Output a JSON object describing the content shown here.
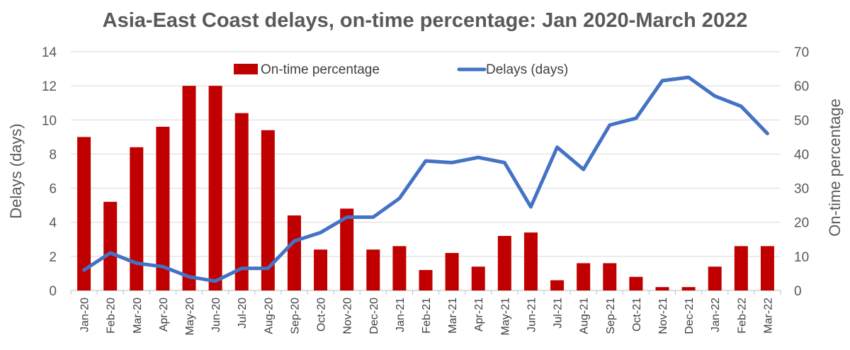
{
  "chart_data": {
    "type": "bar+line",
    "title": "Asia-East Coast delays, on-time percentage: Jan 2020-March 2022",
    "categories": [
      "Jan-20",
      "Feb-20",
      "Mar-20",
      "Apr-20",
      "May-20",
      "Jun-20",
      "Jul-20",
      "Aug-20",
      "Sep-20",
      "Oct-20",
      "Nov-20",
      "Dec-20",
      "Jan-21",
      "Feb-21",
      "Mar-21",
      "Apr-21",
      "May-21",
      "Jun-21",
      "Jul-21",
      "Aug-21",
      "Sep-21",
      "Oct-21",
      "Nov-21",
      "Dec-21",
      "Jan-22",
      "Feb-22",
      "Mar-22"
    ],
    "series": [
      {
        "name": "On-time percentage",
        "type": "bar",
        "axis": "right",
        "color": "#c00000",
        "values": [
          45,
          26,
          42,
          48,
          60,
          60,
          52,
          47,
          22,
          12,
          24,
          12,
          13,
          6,
          11,
          7,
          16,
          17,
          3,
          8,
          8,
          4,
          1,
          1,
          7,
          13,
          13
        ]
      },
      {
        "name": "Delays (days)",
        "type": "line",
        "axis": "left",
        "color": "#4472c4",
        "values": [
          1.2,
          2.2,
          1.6,
          1.4,
          0.8,
          0.55,
          1.3,
          1.3,
          2.9,
          3.4,
          4.3,
          4.3,
          5.4,
          7.6,
          7.5,
          7.8,
          7.5,
          4.9,
          8.4,
          7.1,
          9.7,
          10.1,
          12.3,
          12.5,
          11.4,
          10.8,
          9.2
        ]
      }
    ],
    "y_left": {
      "label": "Delays (days)",
      "min": 0,
      "max": 14,
      "ticks": [
        0,
        2,
        4,
        6,
        8,
        10,
        12,
        14
      ]
    },
    "y_right": {
      "label": "On-time percentage",
      "min": 0,
      "max": 70,
      "ticks": [
        0,
        10,
        20,
        30,
        40,
        50,
        60,
        70
      ]
    },
    "grid": true,
    "legend": "top"
  }
}
